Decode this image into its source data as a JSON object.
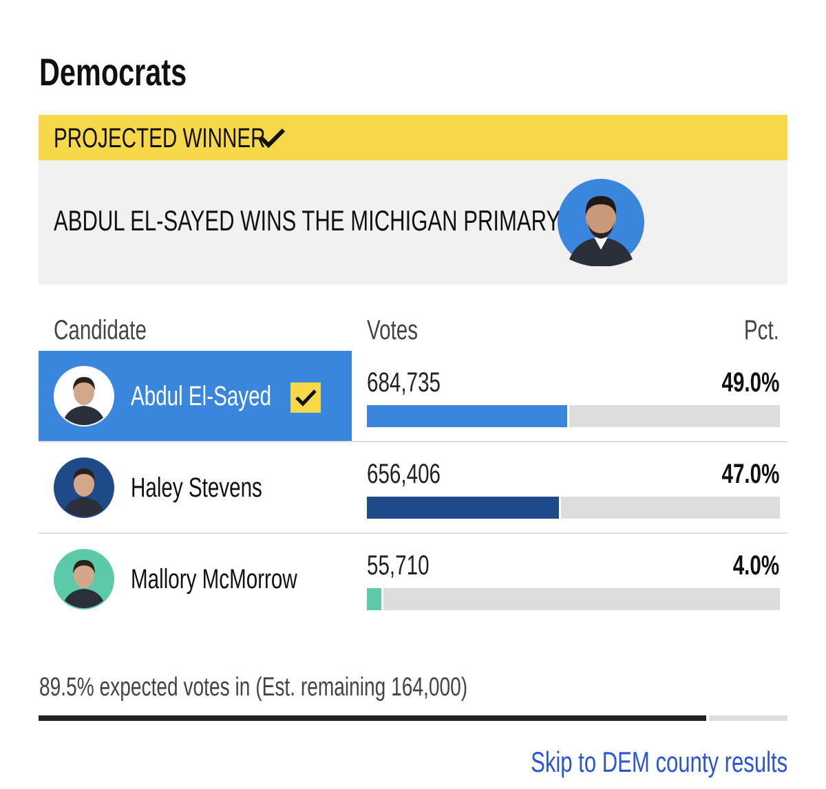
{
  "title": "Democrats",
  "banner": {
    "label": "PROJECTED WINNER",
    "headline": "ABDUL EL-SAYED WINS THE MICHIGAN PRIMARY"
  },
  "table": {
    "columns": [
      "Candidate",
      "Votes",
      "Pct."
    ],
    "rows": [
      {
        "name": "Abdul El-Sayed",
        "votes": "684,735",
        "pct": {
          "value": 49.0,
          "label": "49.0%"
        },
        "color": "#3a86dc",
        "winner": true
      },
      {
        "name": "Haley Stevens",
        "votes": "656,406",
        "pct": {
          "value": 47.0,
          "label": "47.0%"
        },
        "color": "#1f4a8a",
        "winner": false
      },
      {
        "name": "Mallory McMorrow",
        "votes": "55,710",
        "pct": {
          "value": 4.0,
          "label": "4.0%"
        },
        "color": "#5ccaa8",
        "winner": false
      }
    ]
  },
  "expected": {
    "value": 89.5,
    "label": "89.5% expected votes in (Est. remaining 164,000)"
  },
  "link": "Skip to DEM county results"
}
